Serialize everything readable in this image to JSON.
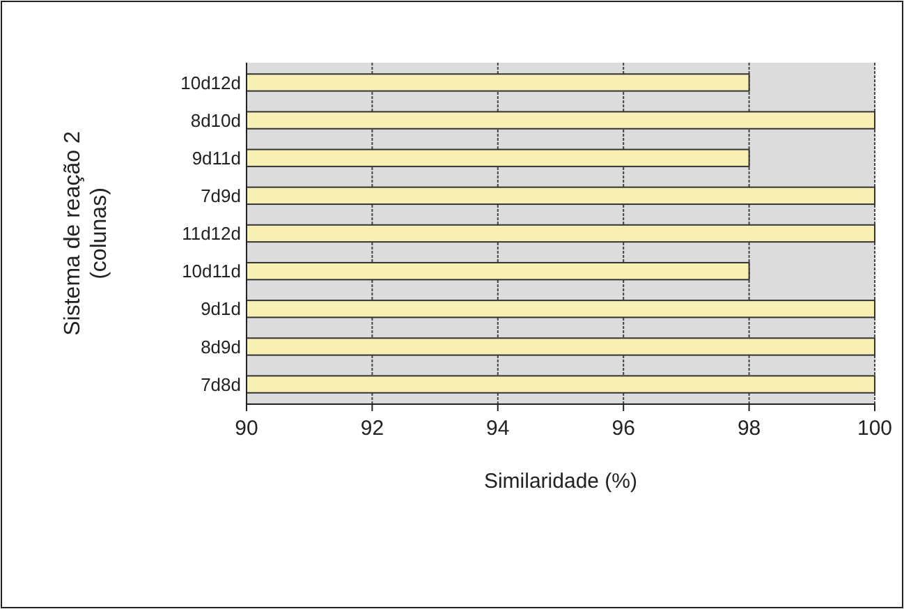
{
  "chart_data": {
    "type": "bar",
    "orientation": "horizontal",
    "xlabel": "Similaridade (%)",
    "ylabel": "Sistema de reação 2\n(colunas)",
    "categories": [
      "10d12d",
      "8d10d",
      "9d11d",
      "7d9d",
      "11d12d",
      "10d11d",
      "9d1d",
      "8d9d",
      "7d8d"
    ],
    "values": [
      98,
      100,
      98,
      100,
      100,
      98,
      100,
      100,
      100
    ],
    "color": "#f7efb4",
    "xlim": [
      90,
      100
    ],
    "xticks": [
      90,
      92,
      94,
      96,
      98,
      100
    ],
    "grid": "x"
  }
}
